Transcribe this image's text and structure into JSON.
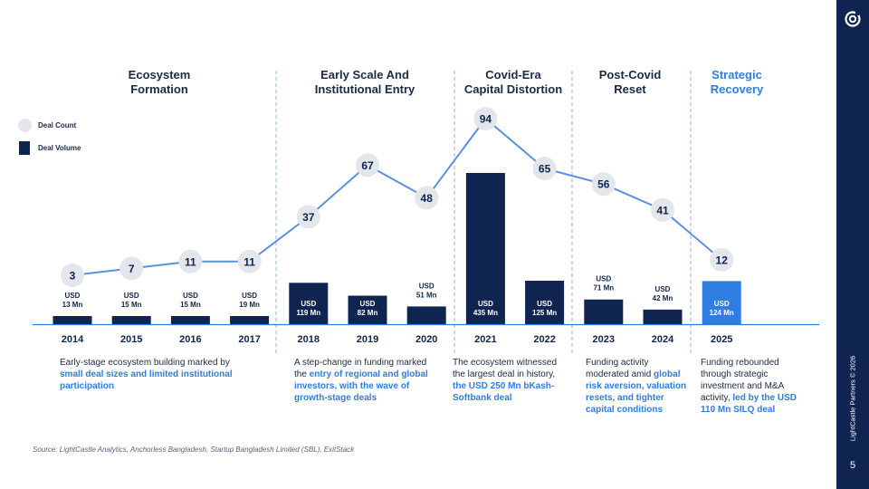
{
  "phases": [
    {
      "title": "Ecosystem\nFormation",
      "accent": false
    },
    {
      "title": "Early Scale And\nInstitutional Entry",
      "accent": false
    },
    {
      "title": "Covid-Era\nCapital Distortion",
      "accent": false
    },
    {
      "title": "Post-Covid\nReset",
      "accent": false
    },
    {
      "title": "Strategic\nRecovery",
      "accent": true
    }
  ],
  "legend": {
    "deal_count": "Deal Count",
    "deal_volume": "Deal Volume"
  },
  "chart_data": {
    "type": "bar+line",
    "categories": [
      "2014",
      "2015",
      "2016",
      "2017",
      "2018",
      "2019",
      "2020",
      "2021",
      "2022",
      "2023",
      "2024",
      "2025"
    ],
    "series": [
      {
        "name": "Deal Volume",
        "unit": "USD Mn",
        "values": [
          13,
          15,
          15,
          19,
          119,
          82,
          51,
          435,
          125,
          71,
          42,
          124
        ],
        "labels": [
          "USD\n13 Mn",
          "USD\n15 Mn",
          "USD\n15 Mn",
          "USD\n19 Mn",
          "USD\n119 Mn",
          "USD\n82 Mn",
          "USD\n51 Mn",
          "USD\n435 Mn",
          "USD\n125 Mn",
          "USD\n71 Mn",
          "USD\n42 Mn",
          "USD\n124 Mn"
        ]
      },
      {
        "name": "Deal Count",
        "values": [
          3,
          7,
          11,
          11,
          37,
          67,
          48,
          94,
          65,
          56,
          41,
          12
        ]
      }
    ],
    "highlight_category": "2025"
  },
  "descriptions": [
    [
      {
        "t": "Early-stage ecosystem building marked by ",
        "hl": false
      },
      {
        "t": "small deal sizes and limited institutional participation",
        "hl": true
      }
    ],
    [
      {
        "t": "A step-change in funding marked the ",
        "hl": false
      },
      {
        "t": "entry of regional and global investors, with the wave of growth-stage deals",
        "hl": true
      }
    ],
    [
      {
        "t": "The ecosystem witnessed the largest deal in history,  ",
        "hl": false
      },
      {
        "t": "the USD 250 Mn bKash-Softbank deal",
        "hl": true
      }
    ],
    [
      {
        "t": "Funding activity moderated amid ",
        "hl": false
      },
      {
        "t": "global risk aversion, valuation resets, and tighter capital conditions",
        "hl": true
      }
    ],
    [
      {
        "t": "Funding rebounded through strategic investment and M&A activity, ",
        "hl": false
      },
      {
        "t": "led by the USD 110 Mn SILQ deal",
        "hl": true
      }
    ]
  ],
  "source": "Source: LightCastle Analytics, Anchorless Bangladesh, Startup Bangladesh Limited (SBL), ExitStack",
  "sidebar": {
    "copyright": "LightCastle Partners © 2026",
    "page_number": "5"
  },
  "colors": {
    "navy": "#0f2450",
    "accent": "#2f7de1",
    "circle": "#e3e6eb",
    "line": "#5b8fe3",
    "divider": "#8db4ee"
  }
}
